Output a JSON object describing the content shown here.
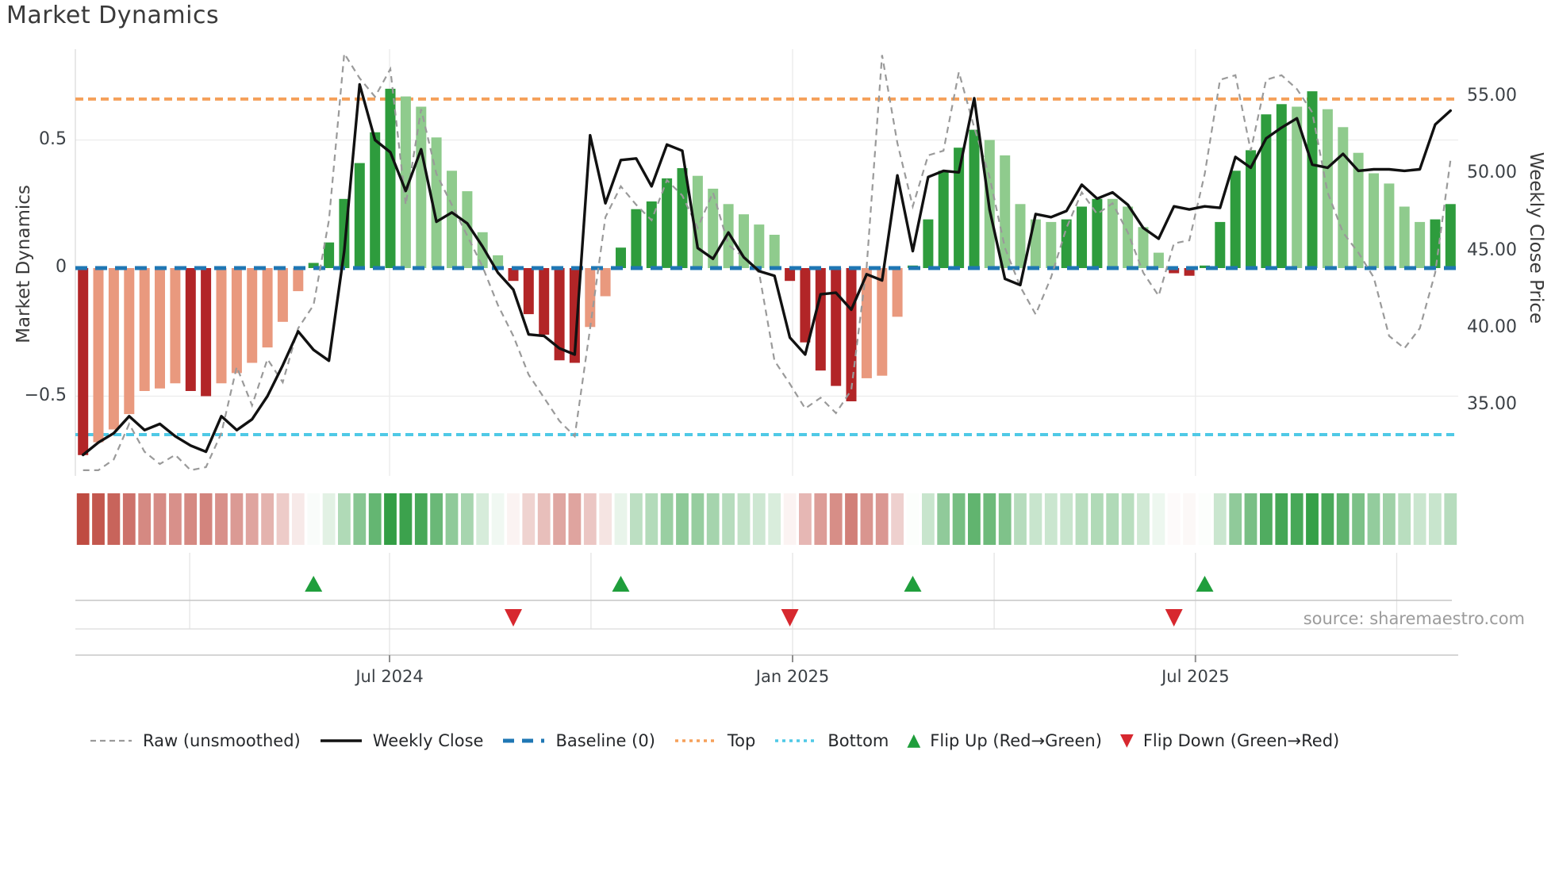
{
  "title": "Market Dynamics",
  "source_note": "source: sharemaestro.com",
  "chart_data": {
    "type": "combo",
    "title": "Market Dynamics",
    "description": "Weekly oscillator bars (left axis) with weekly close and raw close lines (right axis), heat strip and regime-flip markers",
    "left_axis": {
      "label": "Market Dynamics",
      "ticks": [
        {
          "v": 0.5,
          "t": "0.5"
        },
        {
          "v": 0,
          "t": "0"
        },
        {
          "v": -0.5,
          "t": "−0.5"
        }
      ],
      "ylim": [
        -0.81,
        0.85
      ],
      "grid": "on"
    },
    "right_axis": {
      "label": "Weekly Close Price",
      "ticks": [
        {
          "v": 55,
          "t": "55.00"
        },
        {
          "v": 50,
          "t": "50.00"
        },
        {
          "v": 45,
          "t": "45.00"
        },
        {
          "v": 40,
          "t": "40.00"
        },
        {
          "v": 35,
          "t": "35.00"
        }
      ],
      "ylim": [
        30.4,
        58.1
      ]
    },
    "x_axis": {
      "n_weeks": 90,
      "ticks": [
        {
          "week": 20.45,
          "t": "Jul 2024"
        },
        {
          "week": 46.68,
          "t": "Jan 2025"
        },
        {
          "week": 72.9,
          "t": "Jul 2025"
        }
      ],
      "quarter_gridline_weeks": [
        7.44,
        20.45,
        33.56,
        46.68,
        59.8,
        72.9,
        86.0
      ]
    },
    "baseline": 0,
    "top_level": 0.66,
    "bottom_level": -0.65,
    "series": {
      "oscillator": {
        "name": "Market Dynamics oscillator",
        "values": [
          -0.73,
          -0.68,
          -0.63,
          -0.57,
          -0.48,
          -0.47,
          -0.45,
          -0.48,
          -0.5,
          -0.45,
          -0.41,
          -0.37,
          -0.31,
          -0.21,
          -0.09,
          0.02,
          0.1,
          0.27,
          0.41,
          0.53,
          0.7,
          0.67,
          0.63,
          0.51,
          0.38,
          0.3,
          0.14,
          0.05,
          -0.05,
          -0.18,
          -0.26,
          -0.36,
          -0.37,
          -0.23,
          -0.11,
          0.08,
          0.23,
          0.26,
          0.35,
          0.39,
          0.36,
          0.31,
          0.25,
          0.21,
          0.17,
          0.13,
          -0.05,
          -0.29,
          -0.4,
          -0.46,
          -0.52,
          -0.43,
          -0.42,
          -0.19,
          0.01,
          0.19,
          0.38,
          0.47,
          0.54,
          0.5,
          0.44,
          0.25,
          0.19,
          0.18,
          0.19,
          0.24,
          0.27,
          0.27,
          0.24,
          0.16,
          0.06,
          -0.02,
          -0.03,
          0.01,
          0.18,
          0.38,
          0.46,
          0.6,
          0.64,
          0.63,
          0.69,
          0.62,
          0.55,
          0.45,
          0.37,
          0.33,
          0.24,
          0.18,
          0.19,
          0.25
        ],
        "emphasis": [
          1,
          0,
          0,
          0,
          0,
          0,
          0,
          1,
          1,
          0,
          0,
          0,
          0,
          0,
          0,
          1,
          1,
          1,
          1,
          1,
          1,
          0,
          0,
          0,
          0,
          0,
          0,
          0,
          1,
          1,
          1,
          1,
          1,
          0,
          0,
          1,
          1,
          1,
          1,
          1,
          0,
          0,
          0,
          0,
          0,
          0,
          1,
          1,
          1,
          1,
          1,
          0,
          0,
          0,
          1,
          1,
          1,
          1,
          1,
          0,
          0,
          0,
          0,
          0,
          1,
          1,
          1,
          0,
          0,
          0,
          0,
          1,
          1,
          1,
          1,
          1,
          1,
          1,
          1,
          0,
          1,
          0,
          0,
          0,
          0,
          0,
          0,
          0,
          1,
          1
        ]
      },
      "weekly_close": {
        "name": "Weekly Close",
        "values": [
          31.8,
          32.6,
          33.2,
          34.3,
          33.4,
          33.8,
          33.0,
          32.4,
          32.0,
          34.3,
          33.4,
          34.1,
          35.6,
          37.6,
          39.8,
          38.6,
          37.9,
          45.0,
          55.8,
          52.2,
          51.4,
          48.9,
          51.6,
          46.9,
          47.5,
          46.8,
          45.3,
          43.6,
          42.5,
          39.6,
          39.5,
          38.7,
          38.3,
          52.5,
          48.1,
          50.9,
          51.0,
          49.2,
          51.9,
          51.5,
          45.2,
          44.5,
          46.2,
          44.6,
          43.7,
          43.4,
          39.4,
          38.3,
          42.2,
          42.3,
          41.2,
          43.5,
          43.1,
          49.9,
          45.0,
          49.8,
          50.2,
          50.1,
          54.9,
          47.7,
          43.2,
          42.8,
          47.4,
          47.2,
          47.6,
          49.3,
          48.4,
          48.8,
          48.0,
          46.5,
          45.8,
          47.9,
          47.7,
          47.9,
          47.8,
          51.1,
          50.4,
          52.3,
          53.0,
          53.6,
          50.6,
          50.4,
          51.3,
          50.2,
          50.3,
          50.3,
          50.2,
          50.3,
          53.2,
          54.1
        ]
      },
      "raw": {
        "name": "Raw (unsmoothed)",
        "values": [
          30.8,
          30.8,
          31.5,
          33.8,
          32.0,
          31.2,
          31.8,
          30.8,
          31.0,
          33.2,
          37.5,
          35.0,
          38.0,
          36.5,
          40.0,
          41.5,
          47.0,
          57.8,
          56.2,
          55.0,
          56.8,
          48.0,
          54.2,
          50.0,
          48.0,
          46.0,
          44.0,
          41.5,
          39.5,
          37.0,
          35.5,
          34.0,
          33.0,
          40.0,
          47.2,
          49.2,
          48.0,
          47.0,
          49.6,
          48.6,
          46.5,
          48.8,
          45.4,
          44.6,
          43.6,
          37.9,
          36.4,
          34.8,
          35.5,
          34.5,
          36.0,
          44.0,
          57.7,
          52.0,
          47.9,
          51.2,
          51.5,
          56.6,
          53.0,
          49.8,
          45.2,
          42.7,
          40.9,
          43.3,
          46.5,
          48.8,
          47.4,
          48.1,
          46.2,
          43.6,
          42.1,
          45.5,
          45.7,
          50.0,
          56.1,
          56.4,
          51.5,
          56.1,
          56.4,
          55.5,
          54.0,
          48.8,
          46.2,
          44.9,
          43.3,
          39.5,
          38.7,
          40.0,
          43.6,
          50.9
        ]
      },
      "heat_strip": {
        "name": "momentum heat strip",
        "source": "oscillator"
      }
    },
    "flip_up_weeks": [
      16,
      36,
      55,
      74
    ],
    "flip_down_weeks": [
      29,
      47,
      72
    ]
  },
  "legend": {
    "items": [
      {
        "key": "raw",
        "label": "Raw (unsmoothed)",
        "swatch": "dashed-line",
        "color": "#9a9a9a"
      },
      {
        "key": "weekly-close",
        "label": "Weekly Close",
        "swatch": "solid-line",
        "color": "#111111"
      },
      {
        "key": "baseline",
        "label": "Baseline (0)",
        "swatch": "long-dash",
        "color": "#1f77b4"
      },
      {
        "key": "top",
        "label": "Top",
        "swatch": "dotted-line",
        "color": "#f5a05a"
      },
      {
        "key": "bottom",
        "label": "Bottom",
        "swatch": "dotted-line",
        "color": "#4fc9e6"
      },
      {
        "key": "flip-up",
        "label": "Flip Up (Red→Green)",
        "swatch": "triangle-up",
        "color": "#1f9e3c"
      },
      {
        "key": "flip-down",
        "label": "Flip Down (Green→Red)",
        "swatch": "triangle-down",
        "color": "#d7282f"
      }
    ]
  },
  "colors": {
    "bar_strong_pos": "#2e9c3d",
    "bar_light_pos": "#8fcb8d",
    "bar_strong_neg": "#b22527",
    "bar_light_neg": "#e9997e",
    "baseline": "#1f77b4",
    "top_line": "#f5a05a",
    "bottom_line": "#4fc9e6",
    "close_line": "#111111",
    "raw_line": "#9a9a9a",
    "heat_pos": "#2a9a3d",
    "heat_neg": "#bf4b41",
    "flip_up": "#1f9e3c",
    "flip_down": "#d7282f",
    "grid": "#ececec",
    "spine": "#c9c9c9"
  }
}
